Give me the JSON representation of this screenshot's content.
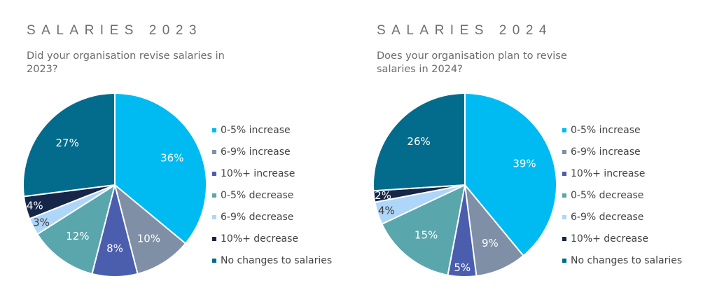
{
  "chart_data": [
    {
      "type": "pie",
      "title": "SALARIES 2023",
      "subtitle": "Did your organisation revise salaries in 2023?",
      "legend_position": "right",
      "slices": [
        {
          "label": "0-5% increase",
          "value": 36,
          "display": "36%",
          "color": "#00BAF2"
        },
        {
          "label": "6-9% increase",
          "value": 10,
          "display": "10%",
          "color": "#7E8FA6"
        },
        {
          "label": "10%+ increase",
          "value": 8,
          "display": "8%",
          "color": "#4A5EAD"
        },
        {
          "label": "0-5% decrease",
          "value": 12,
          "display": "12%",
          "color": "#5AA6AD"
        },
        {
          "label": "6-9% decrease",
          "value": 3,
          "display": "3%",
          "color": "#ADD6F8"
        },
        {
          "label": "10%+ decrease",
          "value": 4,
          "display": "4%",
          "color": "#152649"
        },
        {
          "label": "No changes to salaries",
          "value": 27,
          "display": "27%",
          "color": "#036B8B"
        }
      ]
    },
    {
      "type": "pie",
      "title": "SALARIES 2024",
      "subtitle": "Does your organisation plan to revise salaries in 2024?",
      "legend_position": "right",
      "slices": [
        {
          "label": "0-5% increase",
          "value": 39,
          "display": "39%",
          "color": "#00BAF2"
        },
        {
          "label": "6-9% increase",
          "value": 9,
          "display": "9%",
          "color": "#7E8FA6"
        },
        {
          "label": "10%+ increase",
          "value": 5,
          "display": "5%",
          "color": "#4A5EAD"
        },
        {
          "label": "0-5% decrease",
          "value": 15,
          "display": "15%",
          "color": "#5AA6AD"
        },
        {
          "label": "6-9% decrease",
          "value": 4,
          "display": "4%",
          "color": "#ADD6F8"
        },
        {
          "label": "10%+ decrease",
          "value": 2,
          "display": "2%",
          "color": "#152649"
        },
        {
          "label": "No changes to salaries",
          "value": 26,
          "display": "26%",
          "color": "#036B8B"
        }
      ]
    }
  ]
}
